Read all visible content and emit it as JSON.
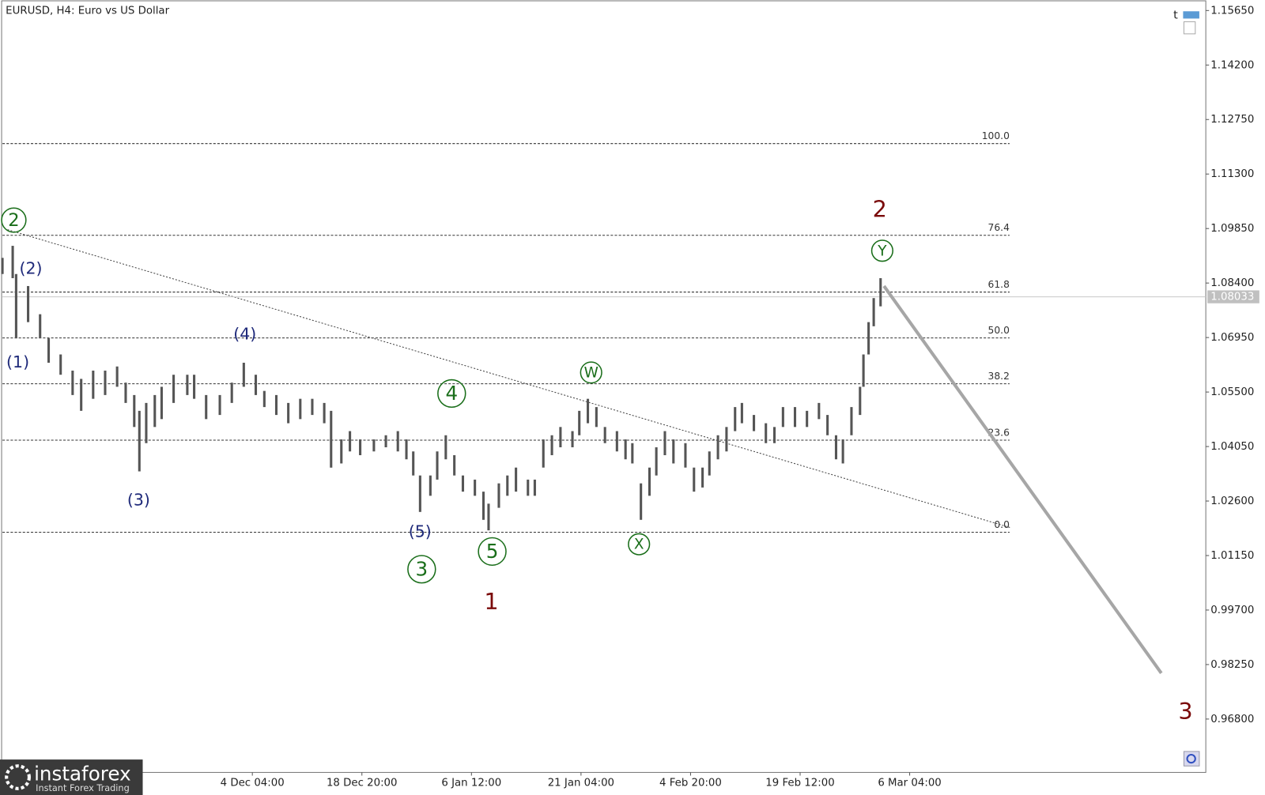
{
  "chart_data": {
    "type": "ohlc",
    "title": "EURUSD, H4:  Euro vs US Dollar",
    "color": "#555555",
    "x": [
      0,
      6,
      8,
      15,
      22,
      27,
      34,
      41,
      46,
      53,
      60,
      67,
      72,
      77,
      80,
      84,
      89,
      93,
      100,
      108,
      112,
      119,
      127,
      134,
      141,
      148,
      153,
      160,
      167,
      174,
      181,
      188,
      192,
      198,
      203,
      209,
      217,
      224,
      231,
      236,
      240,
      244,
      250,
      254,
      259,
      264,
      269,
      276,
      281,
      284,
      290,
      295,
      300,
      307,
      311,
      316,
      321,
      326,
      333,
      337,
      342,
      347,
      352,
      359,
      364,
      368,
      373,
      378,
      382,
      387,
      392,
      399,
      404,
      409,
      413,
      418,
      423,
      428,
      432,
      439,
      446,
      451,
      456,
      463,
      470,
      477,
      482,
      487,
      491,
      496,
      501,
      503,
      506,
      509,
      513
    ],
    "high": [
      1.0907,
      1.0939,
      1.0864,
      1.0832,
      1.0757,
      1.0693,
      1.065,
      1.0607,
      1.0585,
      1.0607,
      1.0607,
      1.0618,
      1.0575,
      1.0542,
      1.05,
      1.0521,
      1.0542,
      1.0564,
      1.0596,
      1.0596,
      1.0596,
      1.0542,
      1.0542,
      1.0575,
      1.0628,
      1.0596,
      1.0553,
      1.0542,
      1.0521,
      1.0532,
      1.0532,
      1.0521,
      1.05,
      1.0424,
      1.0446,
      1.0424,
      1.0424,
      1.0435,
      1.0446,
      1.0424,
      1.0392,
      1.0328,
      1.0328,
      1.0392,
      1.0435,
      1.0382,
      1.0328,
      1.0317,
      1.0285,
      1.0253,
      1.0307,
      1.0328,
      1.0349,
      1.0317,
      1.0317,
      1.0424,
      1.0435,
      1.0457,
      1.0446,
      1.05,
      1.0532,
      1.051,
      1.0457,
      1.0446,
      1.0424,
      1.0414,
      1.0307,
      1.0349,
      1.0403,
      1.0446,
      1.0424,
      1.0414,
      1.0349,
      1.0349,
      1.0392,
      1.0435,
      1.0457,
      1.051,
      1.0521,
      1.0489,
      1.0467,
      1.0457,
      1.051,
      1.051,
      1.05,
      1.0521,
      1.0489,
      1.0435,
      1.0424,
      1.051,
      1.0564,
      1.065,
      1.0736,
      1.08,
      1.0853
    ],
    "low": [
      1.0864,
      1.0853,
      1.0693,
      1.0736,
      1.0693,
      1.0628,
      1.0596,
      1.0542,
      1.05,
      1.0532,
      1.0542,
      1.0564,
      1.0521,
      1.0457,
      1.0339,
      1.0414,
      1.0457,
      1.0478,
      1.0521,
      1.0542,
      1.0532,
      1.0478,
      1.0489,
      1.0521,
      1.0564,
      1.0542,
      1.051,
      1.0489,
      1.0467,
      1.0478,
      1.0489,
      1.0467,
      1.0349,
      1.036,
      1.0392,
      1.0382,
      1.0392,
      1.0403,
      1.0392,
      1.0371,
      1.0328,
      1.0231,
      1.0274,
      1.0317,
      1.0371,
      1.0328,
      1.0285,
      1.0274,
      1.021,
      1.0182,
      1.0242,
      1.0274,
      1.0285,
      1.0274,
      1.0274,
      1.0349,
      1.0382,
      1.0403,
      1.0403,
      1.0435,
      1.0467,
      1.0457,
      1.0414,
      1.0392,
      1.0371,
      1.036,
      1.021,
      1.0274,
      1.0328,
      1.0382,
      1.036,
      1.0349,
      1.0285,
      1.0296,
      1.0328,
      1.0371,
      1.0392,
      1.0446,
      1.0467,
      1.0446,
      1.0414,
      1.0414,
      1.0457,
      1.0457,
      1.0457,
      1.0478,
      1.0435,
      1.0371,
      1.036,
      1.0435,
      1.0489,
      1.0564,
      1.065,
      1.0725,
      1.0778
    ],
    "xlim": [
      0,
      703
    ],
    "ylim": [
      0.9538,
      1.1593
    ],
    "xticks": [
      {
        "value": 146,
        "label": "4 Dec 04:00"
      },
      {
        "value": 210,
        "label": "18 Dec 20:00"
      },
      {
        "value": 274,
        "label": "6 Jan 12:00"
      },
      {
        "value": 338,
        "label": "21 Jan 04:00"
      },
      {
        "value": 402,
        "label": "4 Feb 20:00"
      },
      {
        "value": 466,
        "label": "19 Feb 12:00"
      },
      {
        "value": 530,
        "label": "6 Mar 04:00"
      }
    ],
    "yticks": [
      {
        "value": 1.1565,
        "label": "1.15650"
      },
      {
        "value": 1.142,
        "label": "1.14200"
      },
      {
        "value": 1.1275,
        "label": "1.12750"
      },
      {
        "value": 1.113,
        "label": "1.11300"
      },
      {
        "value": 1.0985,
        "label": "1.09850"
      },
      {
        "value": 1.084,
        "label": "1.08400"
      },
      {
        "value": 1.0695,
        "label": "1.06950"
      },
      {
        "value": 1.055,
        "label": "1.05500"
      },
      {
        "value": 1.0405,
        "label": "1.04050"
      },
      {
        "value": 1.026,
        "label": "1.02600"
      },
      {
        "value": 1.0115,
        "label": "1.01150"
      },
      {
        "value": 0.997,
        "label": "0.99700"
      },
      {
        "value": 0.9825,
        "label": "0.98250"
      },
      {
        "value": 0.968,
        "label": "0.96800"
      }
    ],
    "current_price": 1.08033,
    "fibonacci": [
      {
        "label": "100.0",
        "price": 1.1211
      },
      {
        "label": "76.4",
        "price": 1.0967
      },
      {
        "label": "61.8",
        "price": 1.0816
      },
      {
        "label": "50.0",
        "price": 1.0694
      },
      {
        "label": "38.2",
        "price": 1.0572
      },
      {
        "label": "23.6",
        "price": 1.0422
      },
      {
        "label": "0.0",
        "price": 1.0177
      }
    ],
    "trend_line": {
      "x": [
        3,
        589
      ],
      "values": [
        1.0982,
        1.0189
      ]
    },
    "forecast": {
      "x": [
        515,
        677
      ],
      "values": [
        1.0832,
        0.9802
      ],
      "color": "#a6a6a6"
    },
    "wave_labels": [
      {
        "text": "2",
        "color": "#1a6e1a",
        "circled": true
      },
      {
        "text": "(2)",
        "color": "#1f2a7a",
        "circled": false
      },
      {
        "text": "(1)",
        "color": "#1f2a7a",
        "circled": false
      },
      {
        "text": "(3)",
        "color": "#1f2a7a",
        "circled": false
      },
      {
        "text": "(4)",
        "color": "#1f2a7a",
        "circled": false
      },
      {
        "text": "(5)",
        "color": "#1f2a7a",
        "circled": false
      },
      {
        "text": "3",
        "color": "#1a6e1a",
        "circled": true
      },
      {
        "text": "4",
        "color": "#1a6e1a",
        "circled": true
      },
      {
        "text": "5",
        "color": "#1a6e1a",
        "circled": true
      },
      {
        "text": "1",
        "color": "#7a0a0a",
        "circled": false
      },
      {
        "text": "W",
        "color": "#1a6e1a",
        "circled": true
      },
      {
        "text": "X",
        "color": "#1a6e1a",
        "circled": true
      },
      {
        "text": "Y",
        "color": "#1a6e1a",
        "circled": true
      },
      {
        "text": "2",
        "color": "#7a0a0a",
        "circled": false
      },
      {
        "text": "3",
        "color": "#7a0a0a",
        "circled": false
      }
    ]
  },
  "branding": {
    "name": "instaforex",
    "tagline": "Instant Forex Trading"
  }
}
